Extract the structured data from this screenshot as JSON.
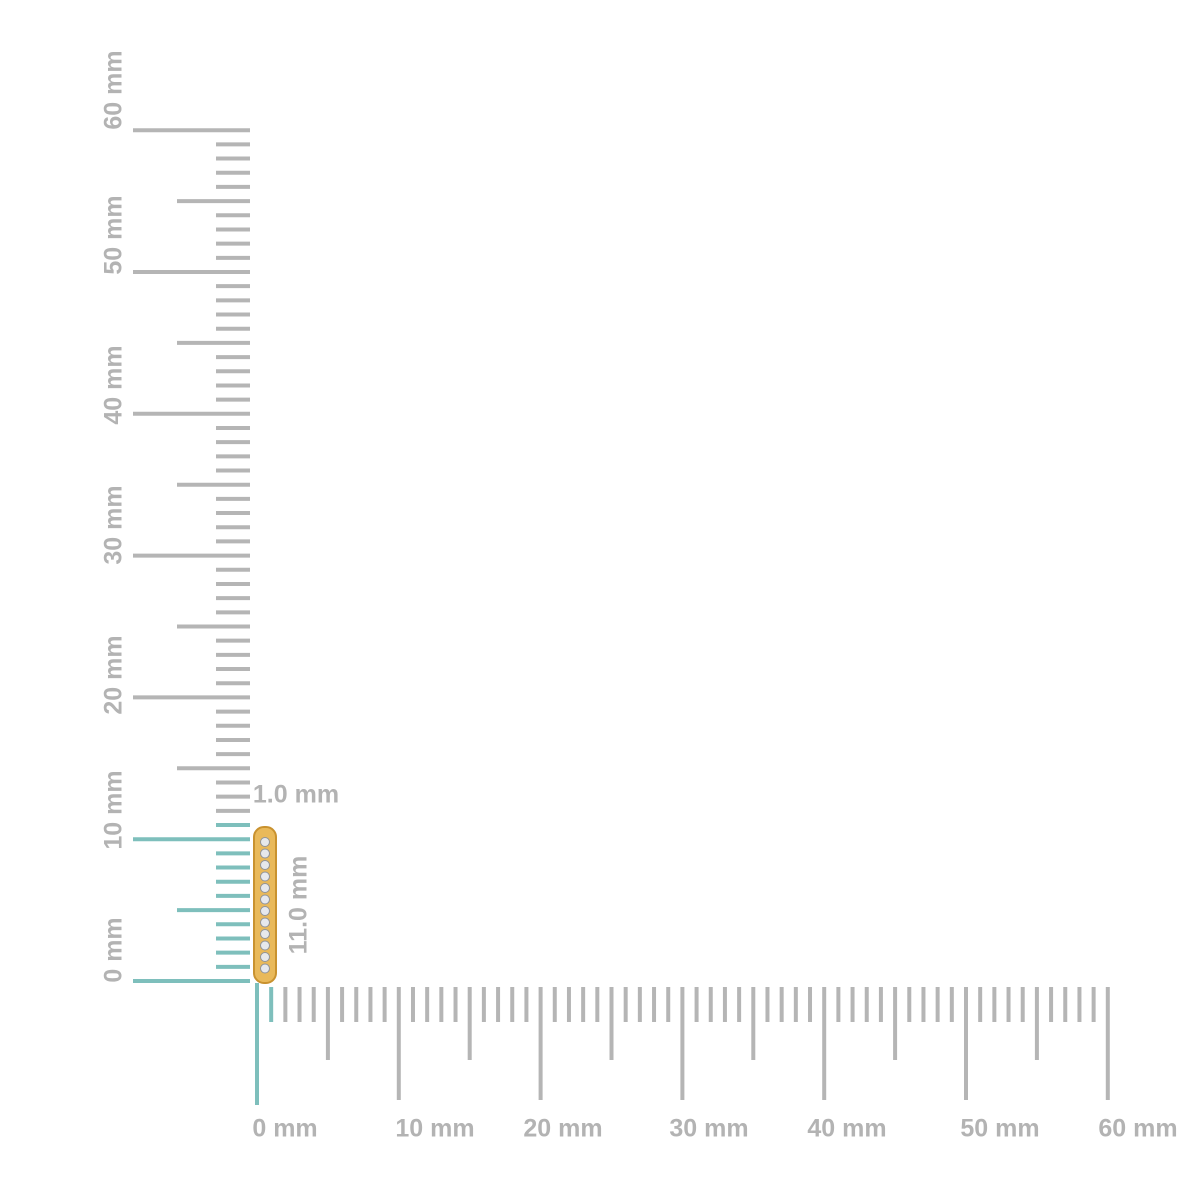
{
  "horizontal_ruler": {
    "labels": [
      "0 mm",
      "10 mm",
      "20 mm",
      "30 mm",
      "40 mm",
      "50 mm",
      "60 mm"
    ]
  },
  "vertical_ruler": {
    "labels": [
      "0 mm",
      "10 mm",
      "20 mm",
      "30 mm",
      "40 mm",
      "50 mm",
      "60 mm"
    ]
  },
  "dimensions": {
    "width": "1.0 mm",
    "height": "11.0 mm"
  }
}
